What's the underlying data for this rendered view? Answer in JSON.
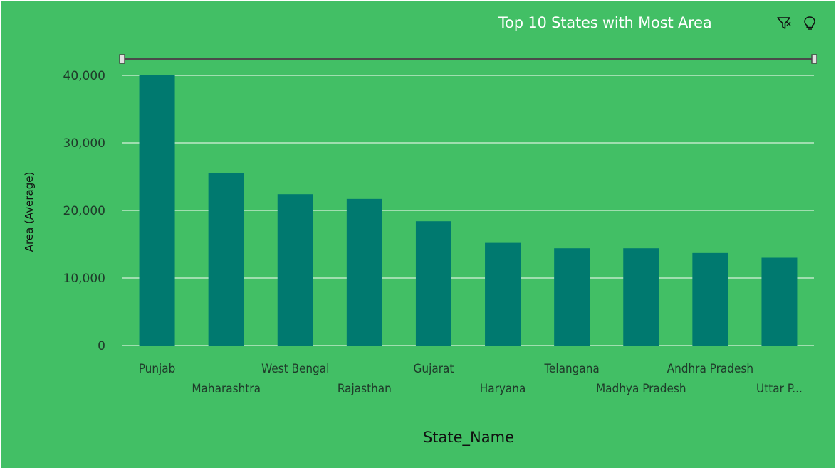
{
  "chart_data": {
    "type": "bar",
    "title": "Top 10 States with Most Area",
    "xlabel": "State_Name",
    "ylabel": "Area (Average)",
    "categories": [
      "Punjab",
      "Maharashtra",
      "West Bengal",
      "Rajasthan",
      "Gujarat",
      "Haryana",
      "Telangana",
      "Madhya Pradesh",
      "Andhra Pradesh",
      "Uttar P..."
    ],
    "values": [
      40000,
      25500,
      22400,
      21700,
      18400,
      15200,
      14400,
      14400,
      13700,
      13000
    ],
    "ylim": [
      0,
      40000
    ],
    "yticks": [
      0,
      10000,
      20000,
      30000,
      40000
    ],
    "ytick_labels": [
      "0",
      "10,000",
      "20,000",
      "30,000",
      "40,000"
    ],
    "grid": true,
    "bar_color": "#00796f",
    "grid_color": "#d7f0dc",
    "background_color": "#42bf65"
  },
  "toolbar": {
    "filter_icon": "filter-icon",
    "insight_icon": "lightbulb-icon"
  }
}
